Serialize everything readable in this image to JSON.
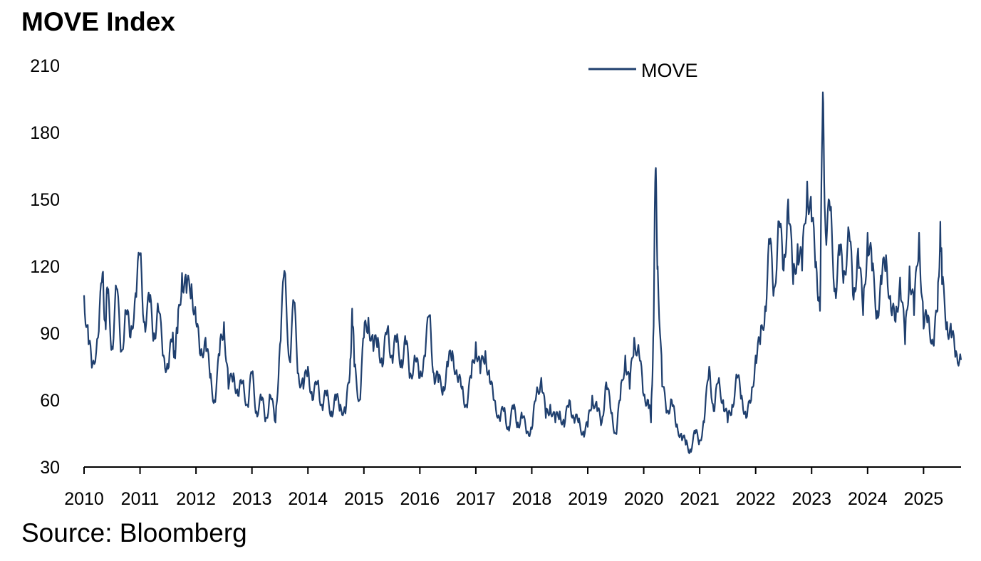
{
  "title": "MOVE Index",
  "source": "Source: Bloomberg",
  "chart_data": {
    "type": "line",
    "title": "MOVE Index",
    "xlabel": "",
    "ylabel": "",
    "ylim": [
      30,
      210
    ],
    "y_ticks": [
      "210",
      "180",
      "150",
      "120",
      "90",
      "60",
      "30"
    ],
    "x_ticks": [
      "2010",
      "2011",
      "2012",
      "2013",
      "2014",
      "2015",
      "2016",
      "2017",
      "2018",
      "2019",
      "2020",
      "2021",
      "2022",
      "2023",
      "2024",
      "2025"
    ],
    "xlim": [
      2010,
      2025.67
    ],
    "legend": {
      "position": "top-center",
      "entries": [
        "MOVE"
      ]
    },
    "line_color": "#1f3f6e",
    "series": [
      {
        "name": "MOVE",
        "x": [
          2010.0,
          2010.08,
          2010.15,
          2010.25,
          2010.33,
          2010.38,
          2010.42,
          2010.5,
          2010.58,
          2010.67,
          2010.75,
          2010.83,
          2010.92,
          2011.0,
          2011.08,
          2011.17,
          2011.25,
          2011.33,
          2011.42,
          2011.5,
          2011.58,
          2011.62,
          2011.67,
          2011.75,
          2011.83,
          2011.92,
          2012.0,
          2012.08,
          2012.17,
          2012.25,
          2012.33,
          2012.42,
          2012.5,
          2012.58,
          2012.67,
          2012.75,
          2012.83,
          2012.92,
          2013.0,
          2013.08,
          2013.17,
          2013.25,
          2013.33,
          2013.42,
          2013.5,
          2013.58,
          2013.67,
          2013.75,
          2013.83,
          2013.92,
          2014.0,
          2014.08,
          2014.17,
          2014.25,
          2014.33,
          2014.42,
          2014.5,
          2014.58,
          2014.67,
          2014.75,
          2014.79,
          2014.83,
          2014.92,
          2015.0,
          2015.08,
          2015.17,
          2015.25,
          2015.33,
          2015.42,
          2015.5,
          2015.58,
          2015.67,
          2015.75,
          2015.83,
          2015.92,
          2016.0,
          2016.08,
          2016.17,
          2016.25,
          2016.33,
          2016.42,
          2016.5,
          2016.58,
          2016.67,
          2016.75,
          2016.83,
          2016.92,
          2017.0,
          2017.08,
          2017.17,
          2017.25,
          2017.33,
          2017.42,
          2017.5,
          2017.58,
          2017.67,
          2017.75,
          2017.83,
          2017.92,
          2018.0,
          2018.08,
          2018.17,
          2018.25,
          2018.33,
          2018.42,
          2018.5,
          2018.58,
          2018.67,
          2018.75,
          2018.83,
          2018.92,
          2019.0,
          2019.08,
          2019.17,
          2019.25,
          2019.33,
          2019.42,
          2019.5,
          2019.58,
          2019.67,
          2019.75,
          2019.83,
          2019.92,
          2020.0,
          2020.08,
          2020.13,
          2020.17,
          2020.21,
          2020.25,
          2020.33,
          2020.42,
          2020.5,
          2020.58,
          2020.67,
          2020.75,
          2020.83,
          2020.92,
          2021.0,
          2021.08,
          2021.17,
          2021.25,
          2021.33,
          2021.42,
          2021.5,
          2021.58,
          2021.67,
          2021.75,
          2021.83,
          2021.92,
          2022.0,
          2022.08,
          2022.17,
          2022.25,
          2022.33,
          2022.42,
          2022.5,
          2022.58,
          2022.67,
          2022.75,
          2022.83,
          2022.92,
          2023.0,
          2023.08,
          2023.15,
          2023.2,
          2023.25,
          2023.33,
          2023.42,
          2023.5,
          2023.58,
          2023.67,
          2023.75,
          2023.83,
          2023.92,
          2024.0,
          2024.08,
          2024.17,
          2024.25,
          2024.33,
          2024.42,
          2024.5,
          2024.58,
          2024.67,
          2024.75,
          2024.83,
          2024.92,
          2025.0,
          2025.08,
          2025.17,
          2025.25,
          2025.3,
          2025.33,
          2025.42,
          2025.5,
          2025.58,
          2025.67
        ],
        "values": [
          107,
          85,
          76,
          88,
          117,
          95,
          108,
          84,
          110,
          82,
          100,
          88,
          108,
          125,
          95,
          104,
          90,
          100,
          80,
          74,
          88,
          82,
          90,
          117,
          108,
          112,
          95,
          80,
          88,
          70,
          60,
          80,
          95,
          65,
          72,
          62,
          68,
          58,
          72,
          55,
          60,
          52,
          62,
          50,
          85,
          118,
          78,
          104,
          72,
          65,
          75,
          60,
          68,
          58,
          62,
          55,
          60,
          58,
          54,
          72,
          101,
          75,
          60,
          88,
          97,
          82,
          88,
          75,
          92,
          80,
          86,
          78,
          85,
          72,
          78,
          70,
          80,
          98,
          72,
          68,
          66,
          75,
          82,
          70,
          65,
          58,
          70,
          86,
          72,
          82,
          68,
          60,
          52,
          55,
          48,
          56,
          50,
          52,
          46,
          47,
          62,
          70,
          52,
          58,
          50,
          55,
          48,
          60,
          52,
          50,
          46,
          48,
          62,
          55,
          50,
          68,
          54,
          45,
          60,
          80,
          65,
          88,
          80,
          62,
          60,
          50,
          88,
          163,
          120,
          66,
          55,
          60,
          48,
          45,
          40,
          38,
          45,
          42,
          50,
          75,
          55,
          68,
          60,
          50,
          58,
          70,
          62,
          52,
          60,
          80,
          85,
          102,
          130,
          110,
          140,
          118,
          150,
          112,
          130,
          118,
          158,
          140,
          122,
          100,
          198,
          135,
          145,
          110,
          125,
          118,
          135,
          105,
          128,
          98,
          135,
          118,
          100,
          112,
          125,
          100,
          95,
          115,
          85,
          120,
          98,
          135,
          92,
          98,
          85,
          100,
          140,
          112,
          95,
          88,
          82,
          78
        ]
      }
    ]
  }
}
